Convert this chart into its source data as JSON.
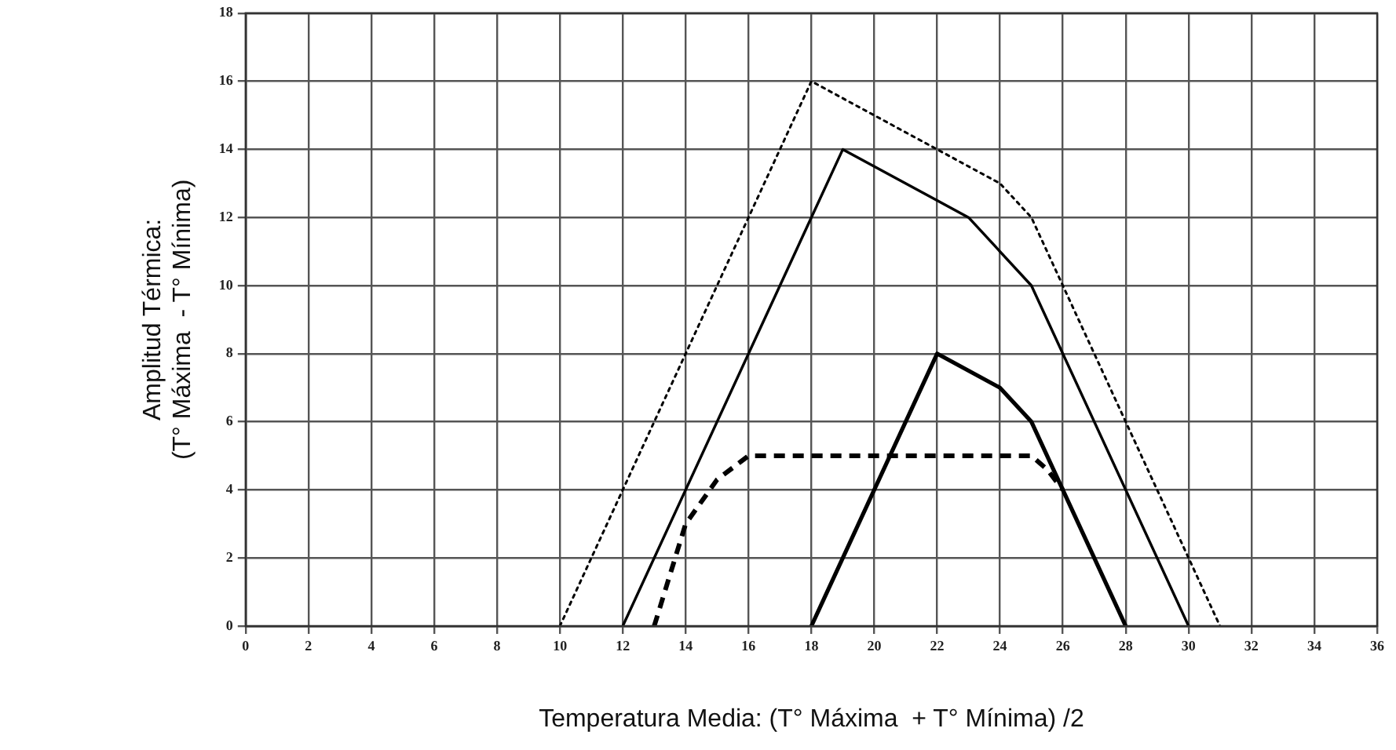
{
  "chart_data": {
    "type": "line",
    "xlabel": "Temperatura Media: (T° Máxima  + T° Mínima) /2",
    "ylabel": [
      "Amplitud Térmica:",
      "(T° Máxima  - T° Mínima)"
    ],
    "xlim": [
      0,
      36
    ],
    "xticks": [
      0,
      2,
      4,
      6,
      8,
      10,
      12,
      14,
      16,
      18,
      20,
      22,
      24,
      26,
      28,
      30,
      32,
      34,
      36
    ],
    "ylim": [
      0,
      18
    ],
    "yticks": [
      0,
      2,
      4,
      6,
      8,
      10,
      12,
      14,
      16,
      18
    ],
    "grid": true,
    "legend": false,
    "marker": "none",
    "series": [
      {
        "color": "#000000",
        "line_style": "dotted",
        "x": [
          10,
          18,
          24,
          25,
          31
        ],
        "values": [
          0,
          16,
          13,
          12,
          0
        ]
      },
      {
        "color": "#000000",
        "line_style": "solid",
        "x": [
          12,
          19,
          23,
          25,
          30
        ],
        "values": [
          0,
          14,
          12,
          10,
          0
        ]
      },
      {
        "color": "#000000",
        "line_style": "solid",
        "x": [
          18,
          22,
          24,
          25,
          28
        ],
        "values": [
          0,
          8,
          7,
          6,
          0
        ]
      },
      {
        "color": "#000000",
        "line_style": "dashed",
        "x": [
          13,
          14,
          15,
          16,
          25,
          25.5,
          26
        ],
        "values": [
          0,
          3,
          4.3,
          5,
          5,
          4.6,
          4
        ]
      }
    ]
  }
}
